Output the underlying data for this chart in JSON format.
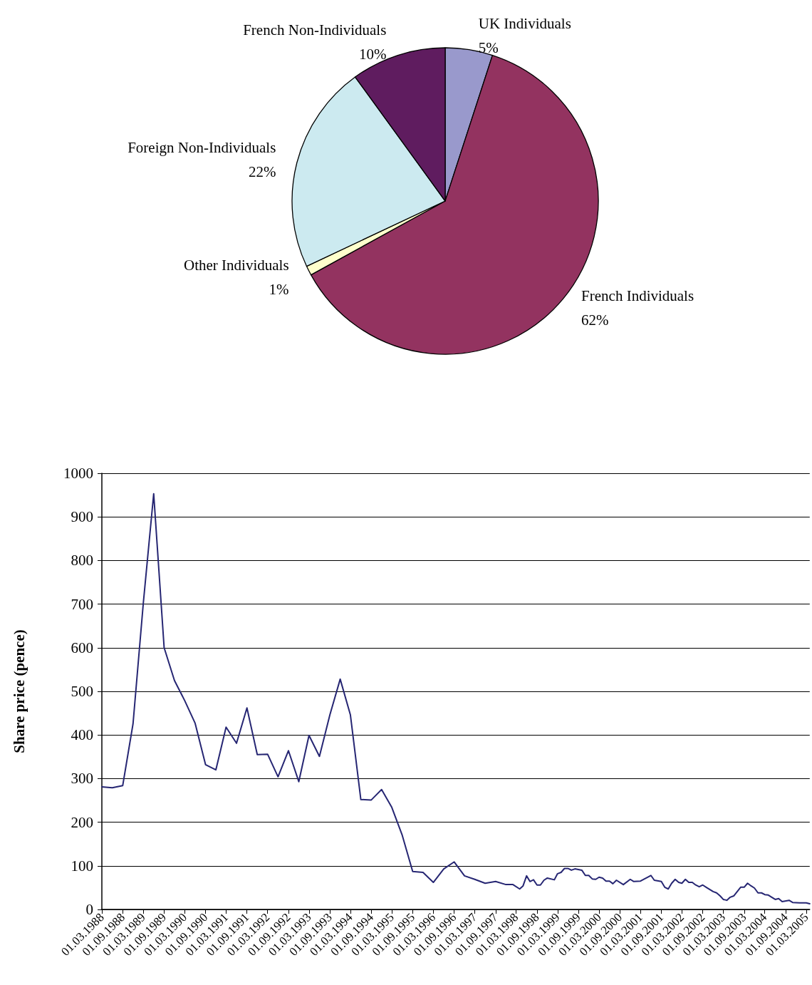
{
  "chart_data": [
    {
      "type": "pie",
      "categories": [
        "UK Individuals",
        "French Individuals",
        "Other Individuals",
        "Foreign Non-Individuals",
        "French Non-Individuals"
      ],
      "values": [
        5,
        62,
        1,
        22,
        10
      ],
      "value_labels": [
        "5%",
        "62%",
        "1%",
        "22%",
        "10%"
      ],
      "colors": [
        "#9999cc",
        "#933360",
        "#ffffcc",
        "#cceaf0",
        "#5f1c5f"
      ],
      "legend": false
    },
    {
      "type": "line",
      "ylabel": "Share price (pence)",
      "legend": false,
      "grid": "y",
      "marker": "none",
      "line_style": "solid",
      "xlim": [
        "1988-03",
        "2005-04"
      ],
      "ylim": [
        0,
        1000
      ],
      "yticks": [
        0,
        100,
        200,
        300,
        400,
        500,
        600,
        700,
        800,
        900,
        1000
      ],
      "xticks": [
        {
          "value": "1988-03",
          "label": "01.03.1988"
        },
        {
          "value": "1988-09",
          "label": "01.09.1988"
        },
        {
          "value": "1989-03",
          "label": "01.03.1989"
        },
        {
          "value": "1989-09",
          "label": "01.09.1989"
        },
        {
          "value": "1990-03",
          "label": "01.03.1990"
        },
        {
          "value": "1990-09",
          "label": "01.09.1990"
        },
        {
          "value": "1991-03",
          "label": "01.03.1991"
        },
        {
          "value": "1991-09",
          "label": "01.09.1991"
        },
        {
          "value": "1992-03",
          "label": "01.03.1992"
        },
        {
          "value": "1992-09",
          "label": "01.09.1992"
        },
        {
          "value": "1993-03",
          "label": "01.03.1993"
        },
        {
          "value": "1993-09",
          "label": "01.09.1993"
        },
        {
          "value": "1994-03",
          "label": "01.03.1994"
        },
        {
          "value": "1994-09",
          "label": "01.09.1994"
        },
        {
          "value": "1995-03",
          "label": "01.03.1995"
        },
        {
          "value": "1995-09",
          "label": "01.09.1995"
        },
        {
          "value": "1996-03",
          "label": "01.03.1996"
        },
        {
          "value": "1996-09",
          "label": "01.09.1996"
        },
        {
          "value": "1997-03",
          "label": "01.03.1997"
        },
        {
          "value": "1997-09",
          "label": "01.09.1997"
        },
        {
          "value": "1998-03",
          "label": "01.03.1998"
        },
        {
          "value": "1998-09",
          "label": "01.09.1998"
        },
        {
          "value": "1999-03",
          "label": "01.03.1999"
        },
        {
          "value": "1999-09",
          "label": "01.09.1999"
        },
        {
          "value": "2000-03",
          "label": "01.03.2000"
        },
        {
          "value": "2000-09",
          "label": "01.09.2000"
        },
        {
          "value": "2001-03",
          "label": "01.03.2001"
        },
        {
          "value": "2001-09",
          "label": "01.09.2001"
        },
        {
          "value": "2002-03",
          "label": "01.03.2002"
        },
        {
          "value": "2002-09",
          "label": "01.09.2002"
        },
        {
          "value": "2003-03",
          "label": "01.03.2003"
        },
        {
          "value": "2003-09",
          "label": "01.09.2003"
        },
        {
          "value": "2004-03",
          "label": "01.03.2004"
        },
        {
          "value": "2004-09",
          "label": "01.09.2004"
        },
        {
          "value": "2005-03",
          "label": "01.03.2005"
        }
      ],
      "x": [
        "1988-03",
        "1988-06",
        "1988-09",
        "1988-12",
        "1989-03",
        "1989-06",
        "1989-09",
        "1989-12",
        "1990-03",
        "1990-06",
        "1990-09",
        "1990-12",
        "1991-03",
        "1991-06",
        "1991-09",
        "1991-12",
        "1992-03",
        "1992-06",
        "1992-09",
        "1992-12",
        "1993-03",
        "1993-06",
        "1993-09",
        "1993-12",
        "1994-03",
        "1994-06",
        "1994-09",
        "1994-12",
        "1995-03",
        "1995-06",
        "1995-09",
        "1995-12",
        "1996-03",
        "1996-06",
        "1996-09",
        "1996-12",
        "1997-03",
        "1997-06",
        "1997-09",
        "1997-12",
        "1998-02",
        "1998-04",
        "1998-05",
        "1998-06",
        "1998-07",
        "1998-08",
        "1998-09",
        "1998-10",
        "1998-11",
        "1998-12",
        "1999-02",
        "1999-03",
        "1999-04",
        "1999-05",
        "1999-06",
        "1999-07",
        "1999-08",
        "1999-10",
        "1999-11",
        "1999-12",
        "2000-01",
        "2000-02",
        "2000-03",
        "2000-04",
        "2000-05",
        "2000-06",
        "2000-07",
        "2000-08",
        "2000-10",
        "2000-12",
        "2001-01",
        "2001-03",
        "2001-06",
        "2001-07",
        "2001-09",
        "2001-10",
        "2001-11",
        "2001-12",
        "2002-01",
        "2002-02",
        "2002-03",
        "2002-04",
        "2002-05",
        "2002-06",
        "2002-07",
        "2002-08",
        "2002-09",
        "2002-10",
        "2002-12",
        "2003-01",
        "2003-02",
        "2003-03",
        "2003-04",
        "2003-05",
        "2003-06",
        "2003-08",
        "2003-09",
        "2003-10",
        "2003-11",
        "2003-12",
        "2004-01",
        "2004-02",
        "2004-03",
        "2004-04",
        "2004-05",
        "2004-06",
        "2004-07",
        "2004-08",
        "2004-10",
        "2004-11",
        "2005-01",
        "2005-03",
        "2005-04"
      ],
      "series": [
        {
          "color": "#262673",
          "values": [
            281,
            279,
            284,
            426,
            701,
            953,
            600,
            525,
            479,
            427,
            332,
            320,
            418,
            381,
            462,
            355,
            356,
            304,
            364,
            293,
            399,
            351,
            446,
            528,
            446,
            252,
            251,
            275,
            234,
            170,
            87,
            85,
            62,
            93,
            109,
            77,
            69,
            60,
            64,
            57,
            57,
            47,
            54,
            77,
            64,
            68,
            56,
            56,
            67,
            72,
            68,
            82,
            85,
            94,
            94,
            90,
            93,
            90,
            78,
            78,
            70,
            69,
            74,
            72,
            65,
            65,
            59,
            67,
            57,
            69,
            64,
            65,
            78,
            67,
            64,
            51,
            47,
            60,
            69,
            62,
            60,
            69,
            62,
            62,
            56,
            52,
            56,
            51,
            41,
            38,
            31,
            23,
            21,
            28,
            31,
            51,
            51,
            60,
            54,
            49,
            38,
            38,
            34,
            33,
            28,
            23,
            25,
            18,
            21,
            16,
            15,
            15,
            13
          ]
        }
      ]
    }
  ]
}
